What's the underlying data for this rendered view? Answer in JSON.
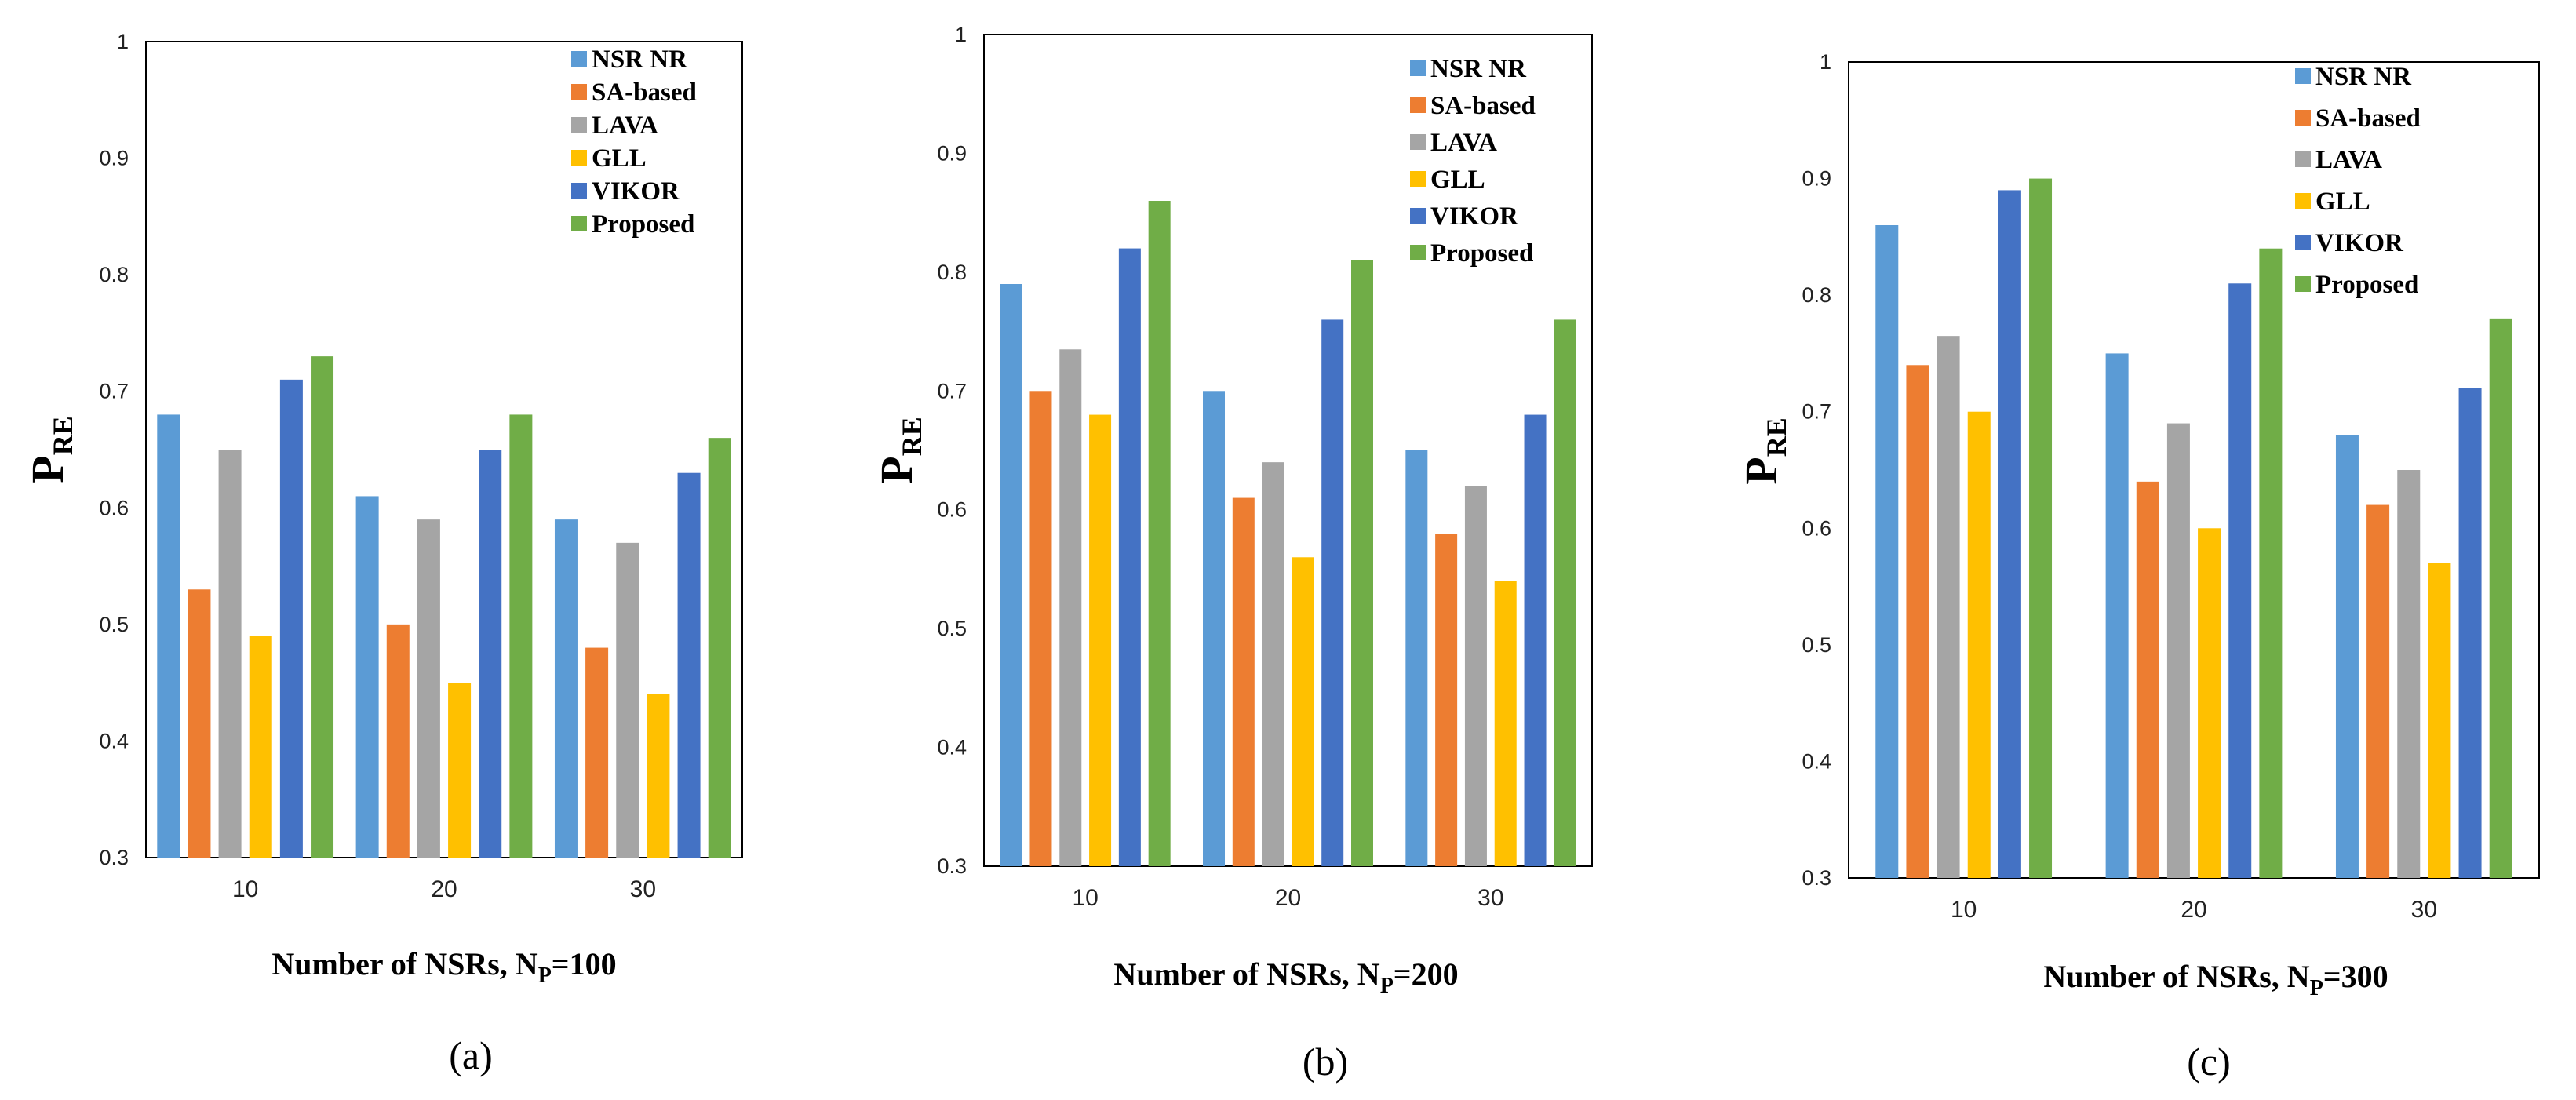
{
  "chart_data": [
    {
      "type": "bar",
      "panel": "(a)",
      "categories": [
        "10",
        "20",
        "30"
      ],
      "series": [
        {
          "name": "NSR NR",
          "values": [
            0.68,
            0.61,
            0.59
          ]
        },
        {
          "name": "SA-based",
          "values": [
            0.53,
            0.5,
            0.48
          ]
        },
        {
          "name": "LAVA",
          "values": [
            0.65,
            0.59,
            0.57
          ]
        },
        {
          "name": "GLL",
          "values": [
            0.49,
            0.45,
            0.44
          ]
        },
        {
          "name": "VIKOR",
          "values": [
            0.71,
            0.65,
            0.63
          ]
        },
        {
          "name": "Proposed",
          "values": [
            0.73,
            0.68,
            0.66
          ]
        }
      ],
      "xlabel_main": "Number  of NSRs, N",
      "xlabel_sub": "P",
      "xlabel_tail": "=100",
      "ylabel_main": "P",
      "ylabel_sub": "RE",
      "ylim": [
        0.3,
        1
      ],
      "yticks": [
        "0.3",
        "0.4",
        "0.5",
        "0.6",
        "0.7",
        "0.8",
        "0.9",
        "1"
      ],
      "legend_position": "top-right",
      "grid": false
    },
    {
      "type": "bar",
      "panel": "(b)",
      "categories": [
        "10",
        "20",
        "30"
      ],
      "series": [
        {
          "name": "NSR NR",
          "values": [
            0.79,
            0.7,
            0.65
          ]
        },
        {
          "name": "SA-based",
          "values": [
            0.7,
            0.61,
            0.58
          ]
        },
        {
          "name": "LAVA",
          "values": [
            0.735,
            0.64,
            0.62
          ]
        },
        {
          "name": "GLL",
          "values": [
            0.68,
            0.56,
            0.54
          ]
        },
        {
          "name": "VIKOR",
          "values": [
            0.82,
            0.76,
            0.68
          ]
        },
        {
          "name": "Proposed",
          "values": [
            0.86,
            0.81,
            0.76
          ]
        }
      ],
      "xlabel_main": "Number  of NSRs, N",
      "xlabel_sub": "P",
      "xlabel_tail": "=200",
      "ylabel_main": "P",
      "ylabel_sub": "RE",
      "ylim": [
        0.3,
        1
      ],
      "yticks": [
        "0.3",
        "0.4",
        "0.5",
        "0.6",
        "0.7",
        "0.8",
        "0.9",
        "1"
      ],
      "legend_position": "top-right",
      "grid": false
    },
    {
      "type": "bar",
      "panel": "(c)",
      "categories": [
        "10",
        "20",
        "30"
      ],
      "series": [
        {
          "name": "NSR NR",
          "values": [
            0.86,
            0.75,
            0.68
          ]
        },
        {
          "name": "SA-based",
          "values": [
            0.74,
            0.64,
            0.62
          ]
        },
        {
          "name": "LAVA",
          "values": [
            0.765,
            0.69,
            0.65
          ]
        },
        {
          "name": "GLL",
          "values": [
            0.7,
            0.6,
            0.57
          ]
        },
        {
          "name": "VIKOR",
          "values": [
            0.89,
            0.81,
            0.72
          ]
        },
        {
          "name": "Proposed",
          "values": [
            0.9,
            0.84,
            0.78
          ]
        }
      ],
      "xlabel_main": "Number  of NSRs, N",
      "xlabel_sub": "P",
      "xlabel_tail": "=300",
      "ylabel_main": "P",
      "ylabel_sub": "RE",
      "ylim": [
        0.3,
        1
      ],
      "yticks": [
        "0.3",
        "0.4",
        "0.5",
        "0.6",
        "0.7",
        "0.8",
        "0.9",
        "1"
      ],
      "legend_position": "top-right",
      "grid": false
    }
  ],
  "colors": {
    "NSR NR": "#5B9BD5",
    "SA-based": "#ED7D31",
    "LAVA": "#A5A5A5",
    "GLL": "#FFC000",
    "VIKOR": "#4472C4",
    "Proposed": "#70AD47"
  }
}
